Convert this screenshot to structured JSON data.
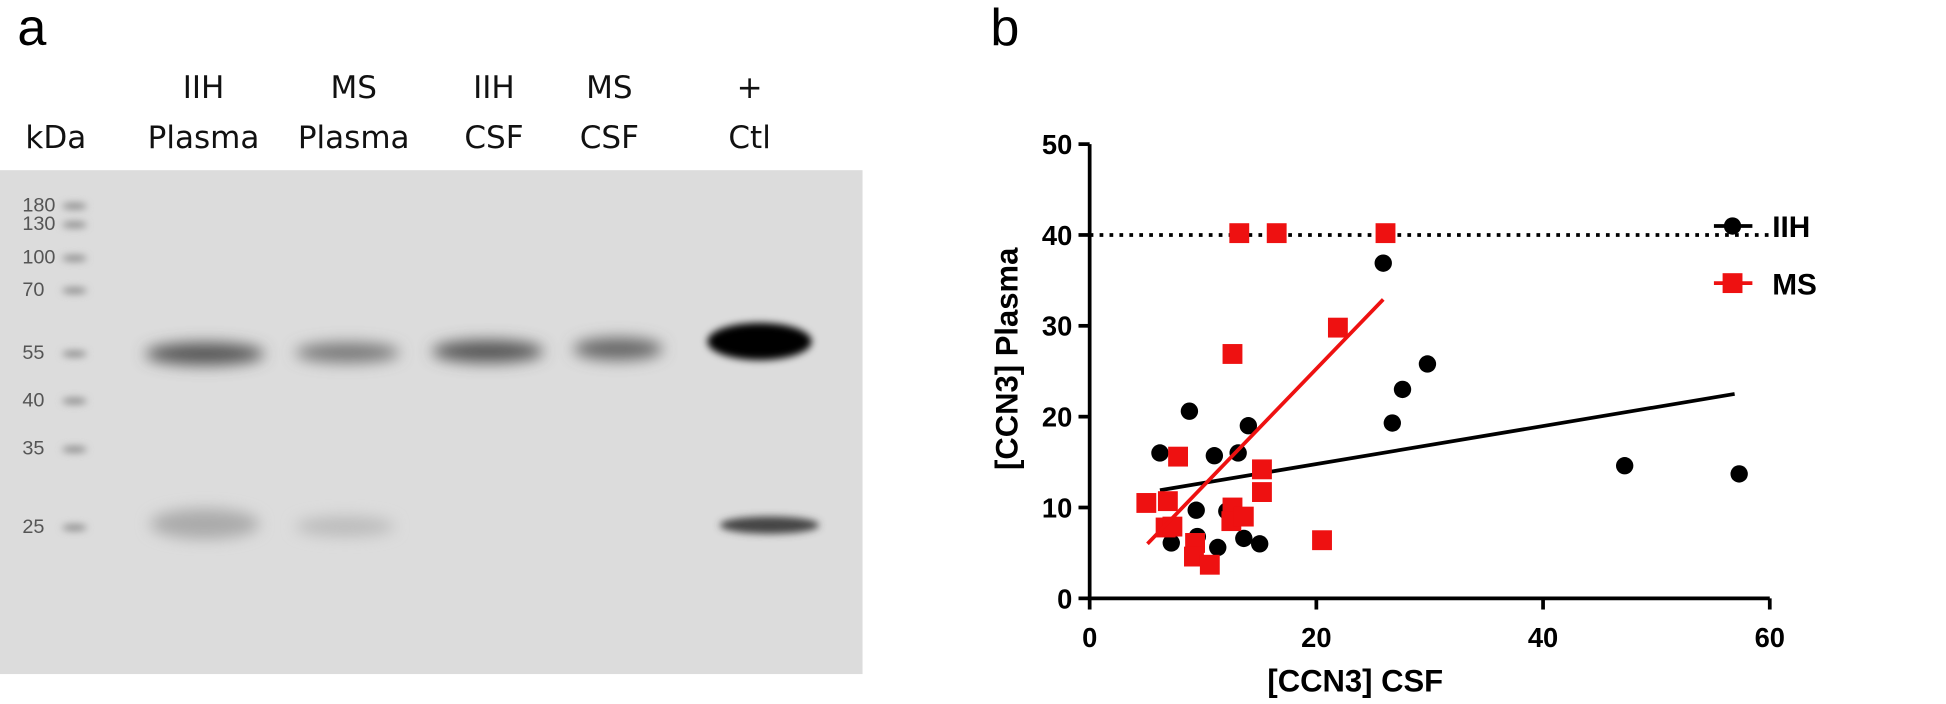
{
  "figure_a": {
    "label": "a",
    "unit": "kDa",
    "lanes": [
      {
        "top": "IIH",
        "bottom": "Plasma"
      },
      {
        "top": "MS",
        "bottom": "Plasma"
      },
      {
        "top": "IIH",
        "bottom": "CSF"
      },
      {
        "top": "MS",
        "bottom": "CSF"
      },
      {
        "top": "+",
        "bottom": "Ctl"
      }
    ],
    "markers": [
      180,
      130,
      100,
      70,
      55,
      40,
      35,
      25
    ]
  },
  "chart_data": {
    "type": "scatter",
    "label": "b",
    "x_label": "[CCN3] CSF",
    "y_label": "[CCN3] Plasma",
    "xlim": [
      0,
      60
    ],
    "xticks": [
      0,
      20,
      40,
      60
    ],
    "ylim": [
      0,
      50
    ],
    "yticks": [
      0,
      10,
      20,
      30,
      40,
      50
    ],
    "reference_line": 40,
    "series": [
      {
        "name": "IIH",
        "color": "#000000",
        "marker": "circle",
        "x": [
          6.2,
          7.2,
          8.8,
          9.4,
          9.5,
          11.0,
          11.3,
          12.1,
          13.1,
          13.6,
          14.0,
          15.0,
          25.9,
          26.7,
          27.6,
          29.8,
          47.2,
          57.3
        ],
        "values": [
          16.0,
          6.1,
          20.6,
          9.7,
          6.8,
          15.7,
          5.6,
          9.6,
          16.0,
          6.6,
          19.0,
          6.0,
          36.9,
          19.3,
          23.0,
          25.8,
          14.6,
          13.7
        ],
        "fit": {
          "x": [
            6.2,
            56.9
          ],
          "y": [
            11.9,
            22.5
          ]
        }
      },
      {
        "name": "MS",
        "color": "#ee1111",
        "marker": "square",
        "x": [
          5.0,
          6.9,
          6.7,
          7.3,
          7.8,
          9.3,
          9.2,
          10.6,
          12.6,
          12.5,
          13.6,
          12.6,
          13.2,
          16.5,
          26.1,
          15.2,
          15.2,
          20.5,
          21.9
        ],
        "values": [
          10.5,
          10.7,
          7.8,
          7.9,
          15.6,
          6.1,
          4.6,
          3.7,
          10.0,
          8.5,
          9.0,
          26.9,
          40.2,
          40.2,
          40.2,
          14.2,
          11.7,
          6.4,
          29.8
        ],
        "fit": {
          "x": [
            5.1,
            25.9
          ],
          "y": [
            6.0,
            32.9
          ]
        }
      }
    ]
  }
}
